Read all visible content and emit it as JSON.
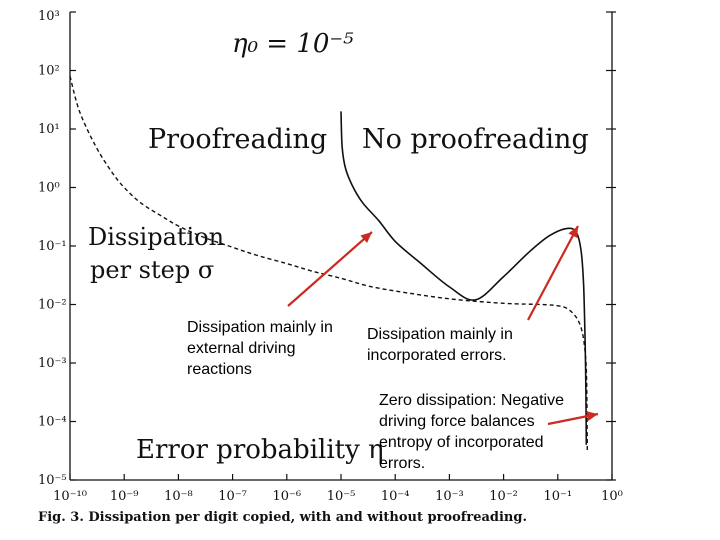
{
  "chart_data": {
    "type": "line",
    "title_formula": "η₀ = 10⁻⁵",
    "ylabel": "Dissipation per step σ",
    "xlabel": "Error probability η",
    "x_scale": "log",
    "y_scale": "log",
    "xlim": [
      1e-10,
      1
    ],
    "ylim": [
      1e-05,
      1000
    ],
    "y_ticks": [
      {
        "value": 1000,
        "label": "10³"
      },
      {
        "value": 100,
        "label": "10²"
      },
      {
        "value": 10,
        "label": "10¹"
      },
      {
        "value": 1,
        "label": "10⁰"
      },
      {
        "value": 0.1,
        "label": "10⁻¹"
      },
      {
        "value": 0.01,
        "label": "10⁻²"
      },
      {
        "value": 0.001,
        "label": "10⁻³"
      },
      {
        "value": 0.0001,
        "label": "10⁻⁴"
      },
      {
        "value": 1e-05,
        "label": "10⁻⁵"
      }
    ],
    "x_ticks": [
      {
        "value": 1e-10,
        "label": "10⁻¹⁰"
      },
      {
        "value": 1e-09,
        "label": "10⁻⁹"
      },
      {
        "value": 1e-08,
        "label": "10⁻⁸"
      },
      {
        "value": 1e-07,
        "label": "10⁻⁷"
      },
      {
        "value": 1e-06,
        "label": "10⁻⁶"
      },
      {
        "value": 1e-05,
        "label": "10⁻⁵"
      },
      {
        "value": 0.0001,
        "label": "10⁻⁴"
      },
      {
        "value": 0.001,
        "label": "10⁻³"
      },
      {
        "value": 0.01,
        "label": "10⁻²"
      },
      {
        "value": 0.1,
        "label": "10⁻¹"
      },
      {
        "value": 1,
        "label": "10⁰"
      }
    ],
    "series": [
      {
        "name": "Proofreading",
        "style": "dashed",
        "color": "#111111",
        "x": [
          1e-10,
          1.5e-10,
          3e-10,
          6e-10,
          1e-09,
          2e-09,
          5e-09,
          1e-08,
          3e-08,
          1e-07,
          3e-07,
          1e-06,
          3e-06,
          1e-05,
          3e-05,
          0.0001,
          0.001,
          0.01,
          0.05,
          0.1,
          0.15,
          0.22,
          0.28,
          0.32,
          0.34,
          0.35
        ],
        "y": [
          80,
          20,
          5,
          1.8,
          1.0,
          0.55,
          0.32,
          0.22,
          0.14,
          0.095,
          0.068,
          0.05,
          0.037,
          0.028,
          0.021,
          0.017,
          0.0125,
          0.0105,
          0.01,
          0.0095,
          0.0085,
          0.006,
          0.0035,
          0.0015,
          0.0005,
          3e-05
        ]
      },
      {
        "name": "No proofreading",
        "style": "solid",
        "color": "#111111",
        "x": [
          1e-05,
          1.05e-05,
          1.2e-05,
          1.6e-05,
          2.5e-05,
          5e-05,
          0.0001,
          0.0003,
          0.001,
          0.003,
          0.01,
          0.03,
          0.07,
          0.15,
          0.22,
          0.27,
          0.3,
          0.32,
          0.33,
          0.335
        ],
        "y": [
          20,
          5,
          2.2,
          1.1,
          0.55,
          0.27,
          0.12,
          0.05,
          0.02,
          0.012,
          0.03,
          0.08,
          0.15,
          0.2,
          0.17,
          0.08,
          0.02,
          0.002,
          0.0003,
          4e-05
        ]
      }
    ],
    "annotations": {
      "proofreading": "Proofreading",
      "no_proofreading": "No proofreading",
      "anno1": "Dissipation mainly in external driving reactions",
      "anno2": "Dissipation mainly in incorporated errors.",
      "anno3": "Zero dissipation: Negative driving force balances entropy of incorporated errors."
    },
    "arrow_color": "#cc2a1e",
    "caption": "Fig. 3. Dissipation per digit copied, with and without proofreading."
  }
}
